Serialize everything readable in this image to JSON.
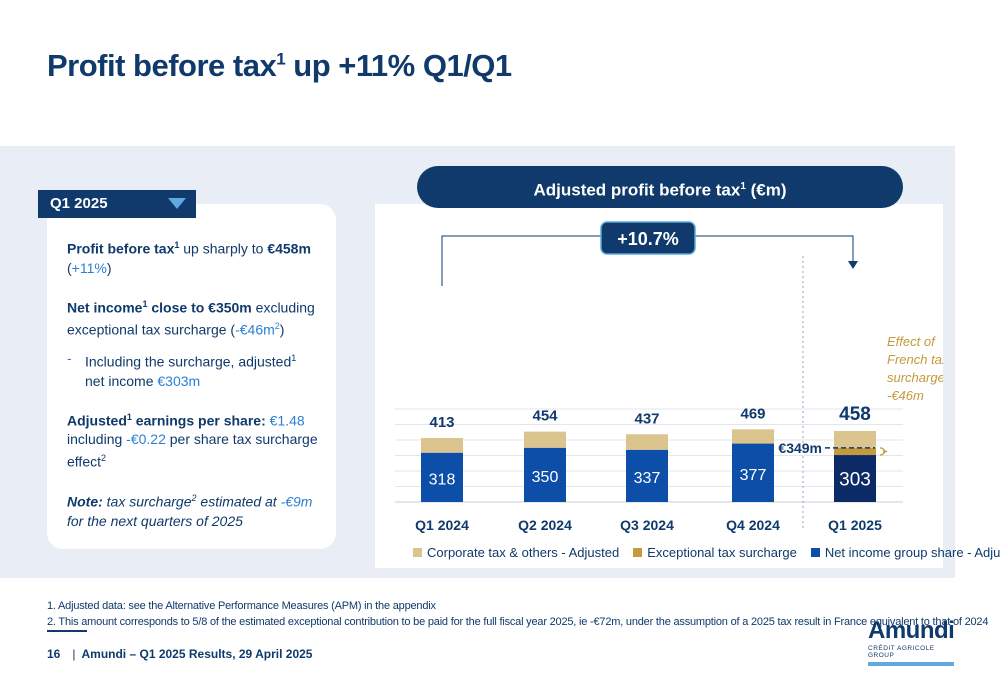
{
  "title": {
    "main": "Profit before tax",
    "sup": "1",
    "rest": " up +11% Q1/Q1"
  },
  "panel": {
    "tab_label": "Q1 2025",
    "pbt": {
      "bold": "Profit before tax",
      "sup": "1",
      "mid": " up sharply to ",
      "value": "€458m",
      "open": "(",
      "pct": "+11%",
      "close": ")"
    },
    "ni": {
      "bold1": "Net income",
      "sup": "1",
      "bold2": " close to €350m",
      "mid": " excluding exceptional tax surcharge (",
      "val": "-€46m",
      "sup2": "2",
      "close": ")"
    },
    "sub": {
      "dash": "-",
      "text": "Including the surcharge, adjusted",
      "sup": "1",
      "text2": " net income ",
      "val": "€303m"
    },
    "eps": {
      "bold1": "Adjusted",
      "sup": "1",
      "bold2": " earnings per share: ",
      "val": "€1.48",
      "mid": " including ",
      "val2": "-€0.22",
      "rest": " per share tax surcharge effect",
      "sup2": "2"
    },
    "note": {
      "bold": "Note:",
      "text": " tax surcharge",
      "sup": "2",
      "text2": " estimated at ",
      "val": "-€9m",
      "text3": " for the next quarters of 2025"
    }
  },
  "chart_header": {
    "text": "Adjusted profit before tax",
    "sup": "1",
    "unit": " (€m)"
  },
  "chart_data": {
    "type": "bar",
    "stacked": true,
    "categories": [
      "Q1 2024",
      "Q2 2024",
      "Q3 2024",
      "Q4 2024",
      "Q1 2025"
    ],
    "series": [
      {
        "name": "Net income group share - Adjusted",
        "values": [
          318,
          350,
          337,
          377,
          303
        ],
        "color": "#0d4fa8"
      },
      {
        "name": "Exceptional tax surcharge",
        "values": [
          0,
          0,
          0,
          0,
          46
        ],
        "color": "#c49a3c"
      },
      {
        "name": "Corporate tax & others - Adjusted",
        "values": [
          95,
          104,
          100,
          92,
          109
        ],
        "color": "#dcc48e"
      }
    ],
    "totals": [
      413,
      454,
      437,
      469,
      458
    ],
    "ylim": [
      0,
      600
    ],
    "highlight_color": "#0b2a66",
    "growth_label": "+10.7%",
    "marker": {
      "label": "€349m",
      "value": 349
    },
    "annotation": {
      "line1": "Effect of",
      "line2": "French tax",
      "line3": "surcharge",
      "sup": "2",
      "line3b": ":",
      "line4": "-€46m"
    },
    "grid": true,
    "legend_position": "bottom"
  },
  "legend": [
    {
      "label": "Corporate tax & others - Adjusted",
      "color": "#dcc48e"
    },
    {
      "label": "Exceptional tax surcharge",
      "color": "#c49a3c"
    },
    {
      "label": "Net income group share - Adjusted",
      "color": "#0d4fa8"
    }
  ],
  "footnotes": {
    "f1": "1. Adjusted data: see the Alternative Performance Measures (APM) in the appendix",
    "f2": "2. This amount corresponds to 5/8 of the estimated exceptional contribution to be paid for the full fiscal year 2025, ie -€72m, under the assumption of a 2025 tax result in France equivalent to that of 2024"
  },
  "footer": {
    "page": "16",
    "sep": "|",
    "text": "Amundi – Q1 2025 Results, 29 April 2025"
  },
  "logo": {
    "name": "Amundi",
    "group": "CRÉDIT AGRICOLE GROUP"
  }
}
